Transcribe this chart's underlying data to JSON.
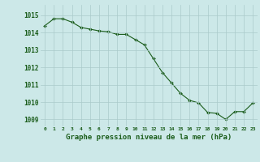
{
  "x": [
    0,
    1,
    2,
    3,
    4,
    5,
    6,
    7,
    8,
    9,
    10,
    11,
    12,
    13,
    14,
    15,
    16,
    17,
    18,
    19,
    20,
    21,
    22,
    23
  ],
  "y": [
    1014.4,
    1014.8,
    1014.8,
    1014.6,
    1014.3,
    1014.2,
    1014.1,
    1014.05,
    1013.9,
    1013.9,
    1013.6,
    1013.3,
    1012.5,
    1011.7,
    1011.1,
    1010.5,
    1010.1,
    1009.95,
    1009.4,
    1009.35,
    1009.0,
    1009.45,
    1009.45,
    1009.95
  ],
  "line_color": "#1a5c1a",
  "marker": "D",
  "marker_size": 2.0,
  "bg_color": "#cce8e8",
  "grid_color": "#aacaca",
  "xlabel": "Graphe pression niveau de la mer (hPa)",
  "xlabel_fontsize": 6.5,
  "xlabel_color": "#1a5c1a",
  "tick_color": "#1a5c1a",
  "ytick_values": [
    1009,
    1010,
    1011,
    1012,
    1013,
    1014,
    1015
  ],
  "ylim": [
    1008.6,
    1015.6
  ],
  "xlim": [
    -0.5,
    23.5
  ],
  "xtick_labels": [
    "0",
    "1",
    "2",
    "3",
    "4",
    "5",
    "6",
    "7",
    "8",
    "9",
    "10",
    "11",
    "12",
    "13",
    "14",
    "15",
    "16",
    "17",
    "18",
    "19",
    "20",
    "21",
    "22",
    "23"
  ]
}
